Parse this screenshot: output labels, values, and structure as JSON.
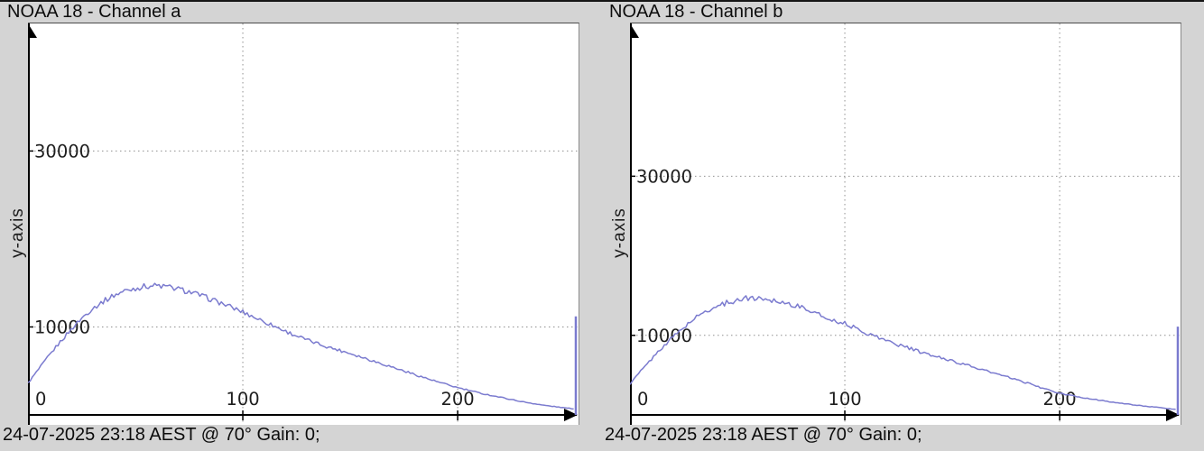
{
  "page": {
    "background": "#d4d4d4",
    "top_edge_color": "#151515"
  },
  "chart_data": [
    {
      "type": "line",
      "title": "NOAA 18 - Channel a",
      "ylabel": "y-axis",
      "status": "24-07-2025 23:18 AEST @ 70° Gain: 0;",
      "xlim": [
        0,
        255
      ],
      "ylim": [
        0,
        44500
      ],
      "x_ticks": [
        0,
        100,
        200
      ],
      "y_ticks": [
        10000,
        30000
      ],
      "grid": "dotted",
      "curve_color": "#7b7bcf",
      "axis_color": "#000000",
      "grid_color": "#909090",
      "tick_text_color": "#1e1e1e",
      "series": [
        {
          "name": "histogram",
          "points": [
            [
              0,
              3600
            ],
            [
              5,
              5200
            ],
            [
              10,
              6800
            ],
            [
              15,
              8300
            ],
            [
              20,
              9700
            ],
            [
              25,
              11000
            ],
            [
              30,
              12100
            ],
            [
              35,
              12900
            ],
            [
              40,
              13600
            ],
            [
              45,
              14100
            ],
            [
              50,
              14400
            ],
            [
              55,
              14650
            ],
            [
              60,
              14700
            ],
            [
              65,
              14550
            ],
            [
              70,
              14300
            ],
            [
              75,
              14000
            ],
            [
              80,
              13600
            ],
            [
              85,
              13150
            ],
            [
              90,
              12700
            ],
            [
              95,
              12200
            ],
            [
              100,
              11700
            ],
            [
              105,
              11150
            ],
            [
              110,
              10600
            ],
            [
              115,
              10050
            ],
            [
              120,
              9500
            ],
            [
              125,
              9000
            ],
            [
              130,
              8500
            ],
            [
              135,
              8100
            ],
            [
              140,
              7700
            ],
            [
              145,
              7350
            ],
            [
              150,
              7000
            ],
            [
              155,
              6600
            ],
            [
              160,
              6200
            ],
            [
              165,
              5800
            ],
            [
              170,
              5400
            ],
            [
              175,
              5000
            ],
            [
              180,
              4600
            ],
            [
              185,
              4200
            ],
            [
              190,
              3800
            ],
            [
              195,
              3450
            ],
            [
              200,
              3100
            ],
            [
              205,
              2800
            ],
            [
              210,
              2500
            ],
            [
              215,
              2250
            ],
            [
              220,
              2000
            ],
            [
              225,
              1750
            ],
            [
              230,
              1500
            ],
            [
              235,
              1300
            ],
            [
              240,
              1100
            ],
            [
              245,
              950
            ],
            [
              250,
              800
            ],
            [
              254,
              700
            ]
          ]
        }
      ],
      "spike": {
        "x": 255,
        "value": 11200
      }
    },
    {
      "type": "line",
      "title": "NOAA 18 - Channel b",
      "ylabel": "y-axis",
      "status": "24-07-2025 23:18 AEST @ 70° Gain: 0;",
      "xlim": [
        0,
        255
      ],
      "ylim": [
        0,
        49200
      ],
      "x_ticks": [
        0,
        100,
        200
      ],
      "y_ticks": [
        10000,
        30000
      ],
      "grid": "dotted",
      "curve_color": "#7b7bcf",
      "axis_color": "#000000",
      "grid_color": "#909090",
      "tick_text_color": "#1e1e1e",
      "series": [
        {
          "name": "histogram",
          "points": [
            [
              0,
              3900
            ],
            [
              5,
              5500
            ],
            [
              10,
              7000
            ],
            [
              15,
              8500
            ],
            [
              20,
              9800
            ],
            [
              25,
              11000
            ],
            [
              30,
              12100
            ],
            [
              35,
              13000
            ],
            [
              40,
              13600
            ],
            [
              45,
              14100
            ],
            [
              50,
              14450
            ],
            [
              55,
              14700
            ],
            [
              60,
              14650
            ],
            [
              65,
              14500
            ],
            [
              70,
              14250
            ],
            [
              75,
              13900
            ],
            [
              80,
              13500
            ],
            [
              85,
              13000
            ],
            [
              90,
              12300
            ],
            [
              95,
              11900
            ],
            [
              100,
              11500
            ],
            [
              105,
              10900
            ],
            [
              110,
              10300
            ],
            [
              115,
              9800
            ],
            [
              120,
              9300
            ],
            [
              125,
              8800
            ],
            [
              130,
              8400
            ],
            [
              135,
              7900
            ],
            [
              140,
              7500
            ],
            [
              145,
              7150
            ],
            [
              150,
              6800
            ],
            [
              155,
              6400
            ],
            [
              160,
              6000
            ],
            [
              165,
              5600
            ],
            [
              170,
              5200
            ],
            [
              175,
              4800
            ],
            [
              180,
              4400
            ],
            [
              185,
              4000
            ],
            [
              190,
              3550
            ],
            [
              195,
              3100
            ],
            [
              200,
              2700
            ],
            [
              205,
              2450
            ],
            [
              210,
              2200
            ],
            [
              215,
              2000
            ],
            [
              220,
              1800
            ],
            [
              225,
              1600
            ],
            [
              230,
              1400
            ],
            [
              235,
              1250
            ],
            [
              240,
              1100
            ],
            [
              245,
              950
            ],
            [
              250,
              800
            ],
            [
              254,
              700
            ]
          ]
        }
      ],
      "spike": {
        "x": 255,
        "value": 11100
      }
    }
  ]
}
